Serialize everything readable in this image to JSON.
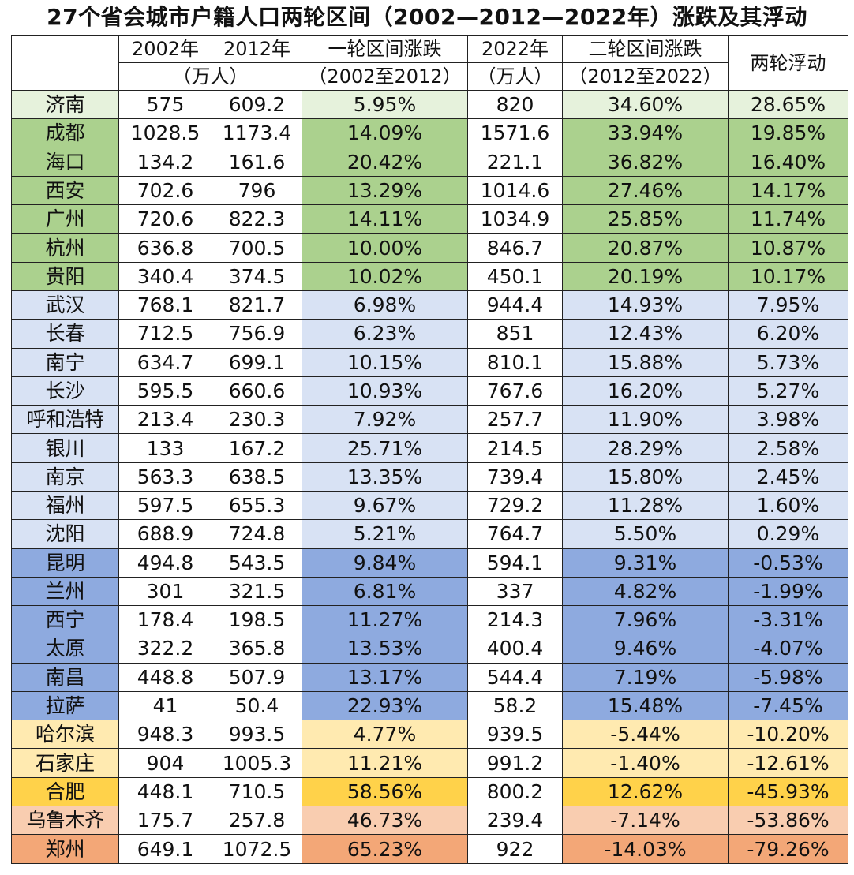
{
  "title": "27个省会城市户籍人口两轮区间（2002—2012—2022年）涨跌及其浮动",
  "header": {
    "col2002": "2002年",
    "col2012": "2012年",
    "unit": "（万人）",
    "round1": "一轮区间涨跌",
    "round1_range": "（2002至2012）",
    "col2022": "2022年",
    "unit2022": "（万人）",
    "round2": "二轮区间涨跌",
    "round2_range": "（2012至2022）",
    "float": "两轮浮动"
  },
  "colors": {
    "very_light_green": "#e6f2dc",
    "green": "#abd18e",
    "light_blue": "#d8e2f4",
    "blue": "#8eaadf",
    "light_yellow": "#ffeab0",
    "yellow": "#ffd24a",
    "light_orange": "#f9cdb0",
    "orange": "#f3a777"
  },
  "rows": [
    {
      "city": "济南",
      "p2002": "575",
      "p2012": "609.2",
      "r1": "5.95%",
      "p2022": "820",
      "r2": "34.60%",
      "f": "28.65%",
      "g": "g1"
    },
    {
      "city": "成都",
      "p2002": "1028.5",
      "p2012": "1173.4",
      "r1": "14.09%",
      "p2022": "1571.6",
      "r2": "33.94%",
      "f": "19.85%",
      "g": "g2"
    },
    {
      "city": "海口",
      "p2002": "134.2",
      "p2012": "161.6",
      "r1": "20.42%",
      "p2022": "221.1",
      "r2": "36.82%",
      "f": "16.40%",
      "g": "g2"
    },
    {
      "city": "西安",
      "p2002": "702.6",
      "p2012": "796",
      "r1": "13.29%",
      "p2022": "1014.6",
      "r2": "27.46%",
      "f": "14.17%",
      "g": "g2"
    },
    {
      "city": "广州",
      "p2002": "720.6",
      "p2012": "822.3",
      "r1": "14.11%",
      "p2022": "1034.9",
      "r2": "25.85%",
      "f": "11.74%",
      "g": "g2"
    },
    {
      "city": "杭州",
      "p2002": "636.8",
      "p2012": "700.5",
      "r1": "10.00%",
      "p2022": "846.7",
      "r2": "20.87%",
      "f": "10.87%",
      "g": "g2"
    },
    {
      "city": "贵阳",
      "p2002": "340.4",
      "p2012": "374.5",
      "r1": "10.02%",
      "p2022": "450.1",
      "r2": "20.19%",
      "f": "10.17%",
      "g": "g2"
    },
    {
      "city": "武汉",
      "p2002": "768.1",
      "p2012": "821.7",
      "r1": "6.98%",
      "p2022": "944.4",
      "r2": "14.93%",
      "f": "7.95%",
      "g": "g3"
    },
    {
      "city": "长春",
      "p2002": "712.5",
      "p2012": "756.9",
      "r1": "6.23%",
      "p2022": "851",
      "r2": "12.43%",
      "f": "6.20%",
      "g": "g3"
    },
    {
      "city": "南宁",
      "p2002": "634.7",
      "p2012": "699.1",
      "r1": "10.15%",
      "p2022": "810.1",
      "r2": "15.88%",
      "f": "5.73%",
      "g": "g3"
    },
    {
      "city": "长沙",
      "p2002": "595.5",
      "p2012": "660.6",
      "r1": "10.93%",
      "p2022": "767.6",
      "r2": "16.20%",
      "f": "5.27%",
      "g": "g3"
    },
    {
      "city": "呼和浩特",
      "p2002": "213.4",
      "p2012": "230.3",
      "r1": "7.92%",
      "p2022": "257.7",
      "r2": "11.90%",
      "f": "3.98%",
      "g": "g3"
    },
    {
      "city": "银川",
      "p2002": "133",
      "p2012": "167.2",
      "r1": "25.71%",
      "p2022": "214.5",
      "r2": "28.29%",
      "f": "2.58%",
      "g": "g3"
    },
    {
      "city": "南京",
      "p2002": "563.3",
      "p2012": "638.5",
      "r1": "13.35%",
      "p2022": "739.4",
      "r2": "15.80%",
      "f": "2.45%",
      "g": "g3"
    },
    {
      "city": "福州",
      "p2002": "597.5",
      "p2012": "655.3",
      "r1": "9.67%",
      "p2022": "729.2",
      "r2": "11.28%",
      "f": "1.60%",
      "g": "g3"
    },
    {
      "city": "沈阳",
      "p2002": "688.9",
      "p2012": "724.8",
      "r1": "5.21%",
      "p2022": "764.7",
      "r2": "5.50%",
      "f": "0.29%",
      "g": "g3"
    },
    {
      "city": "昆明",
      "p2002": "494.8",
      "p2012": "543.5",
      "r1": "9.84%",
      "p2022": "594.1",
      "r2": "9.31%",
      "f": "-0.53%",
      "g": "g4"
    },
    {
      "city": "兰州",
      "p2002": "301",
      "p2012": "321.5",
      "r1": "6.81%",
      "p2022": "337",
      "r2": "4.82%",
      "f": "-1.99%",
      "g": "g4"
    },
    {
      "city": "西宁",
      "p2002": "178.4",
      "p2012": "198.5",
      "r1": "11.27%",
      "p2022": "214.3",
      "r2": "7.96%",
      "f": "-3.31%",
      "g": "g4"
    },
    {
      "city": "太原",
      "p2002": "322.2",
      "p2012": "365.8",
      "r1": "13.53%",
      "p2022": "400.4",
      "r2": "9.46%",
      "f": "-4.07%",
      "g": "g4"
    },
    {
      "city": "南昌",
      "p2002": "448.8",
      "p2012": "507.9",
      "r1": "13.17%",
      "p2022": "544.4",
      "r2": "7.19%",
      "f": "-5.98%",
      "g": "g4"
    },
    {
      "city": "拉萨",
      "p2002": "41",
      "p2012": "50.4",
      "r1": "22.93%",
      "p2022": "58.2",
      "r2": "15.48%",
      "f": "-7.45%",
      "g": "g4"
    },
    {
      "city": "哈尔滨",
      "p2002": "948.3",
      "p2012": "993.5",
      "r1": "4.77%",
      "p2022": "939.5",
      "r2": "-5.44%",
      "f": "-10.20%",
      "g": "g5"
    },
    {
      "city": "石家庄",
      "p2002": "904",
      "p2012": "1005.3",
      "r1": "11.21%",
      "p2022": "991.2",
      "r2": "-1.40%",
      "f": "-12.61%",
      "g": "g5"
    },
    {
      "city": "合肥",
      "p2002": "448.1",
      "p2012": "710.5",
      "r1": "58.56%",
      "p2022": "800.2",
      "r2": "12.62%",
      "f": "-45.93%",
      "g": "g6"
    },
    {
      "city": "乌鲁木齐",
      "p2002": "175.7",
      "p2012": "257.8",
      "r1": "46.73%",
      "p2022": "239.4",
      "r2": "-7.14%",
      "f": "-53.86%",
      "g": "g7"
    },
    {
      "city": "郑州",
      "p2002": "649.1",
      "p2012": "1072.5",
      "r1": "65.23%",
      "p2022": "922",
      "r2": "-14.03%",
      "f": "-79.26%",
      "g": "g8"
    }
  ]
}
